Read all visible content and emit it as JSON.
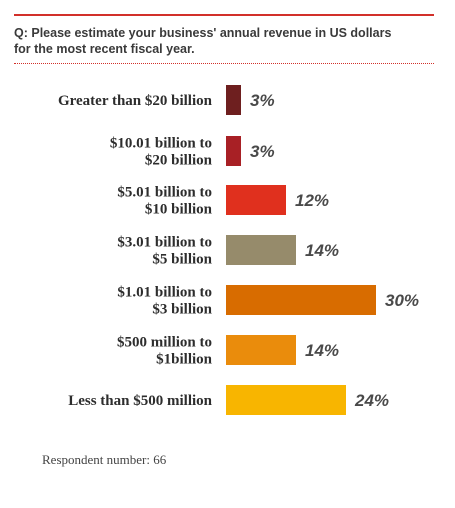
{
  "question": {
    "line1": "Q: Please estimate your business' annual revenue in US dollars",
    "line2": "for the most recent fiscal year."
  },
  "chart_data": {
    "type": "bar",
    "orientation": "horizontal",
    "categories": [
      [
        "Greater than $20 billion"
      ],
      [
        "$10.01 billion to",
        "$20 billion"
      ],
      [
        "$5.01 billion to",
        "$10 billion"
      ],
      [
        "$3.01 billion to",
        "$5 billion"
      ],
      [
        "$1.01 billion to",
        "$3 billion"
      ],
      [
        "$500 million to",
        "$1billion"
      ],
      [
        "Less than $500 million"
      ]
    ],
    "values": [
      3,
      3,
      12,
      14,
      30,
      14,
      24
    ],
    "value_labels": [
      "3%",
      "3%",
      "12%",
      "14%",
      "30%",
      "14%",
      "24%"
    ],
    "colors": [
      "#6e1f1f",
      "#a82025",
      "#e0301e",
      "#968b6b",
      "#d86c00",
      "#ea8c0c",
      "#f8b500"
    ],
    "unit": "%",
    "grid": false,
    "legend": "none"
  },
  "footnote": "Respondent number: 66"
}
